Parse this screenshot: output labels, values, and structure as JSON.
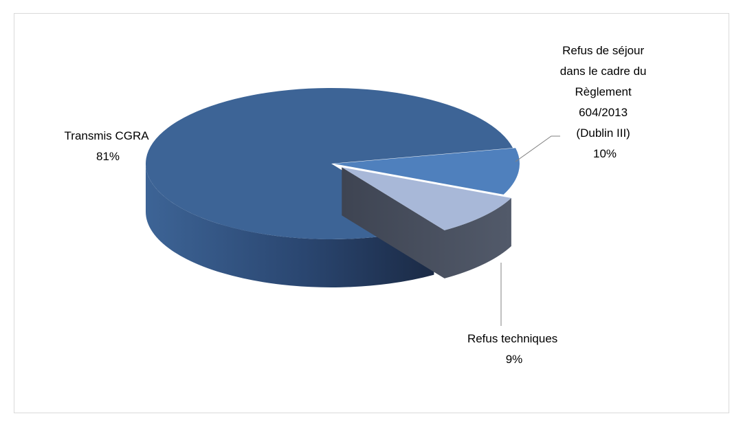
{
  "chart_data": {
    "type": "pie",
    "style": "3d-exploded",
    "slices": [
      {
        "label_lines": [
          "Transmis CGRA"
        ],
        "value": 81,
        "percent_label": "81%",
        "color": "#3D6496"
      },
      {
        "label_lines": [
          "Refus de séjour",
          "dans le cadre du",
          "Règlement",
          "604/2013",
          "(Dublin III)"
        ],
        "value": 10,
        "percent_label": "10%",
        "color": "#4F80BD"
      },
      {
        "label_lines": [
          "Refus techniques"
        ],
        "value": 9,
        "percent_label": "9%",
        "color": "#A8B8D8"
      }
    ],
    "legend": "none",
    "data_labels": "outside with leader lines"
  },
  "colors": {
    "border": "#D9D9D9",
    "large_side_dark": "#1B2A45",
    "small_side_dark": "#454C5A",
    "leader_line": "#808080"
  }
}
